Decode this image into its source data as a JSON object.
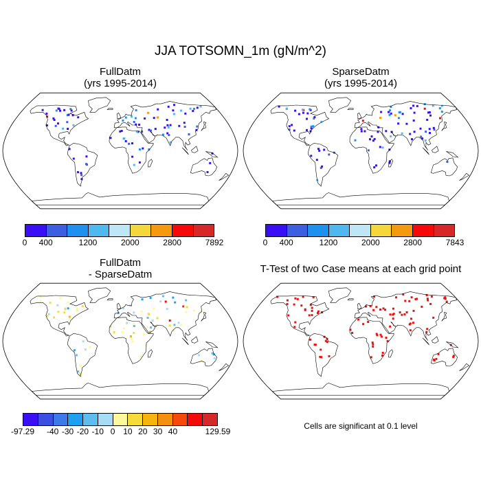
{
  "title": "JJA TOTSOMN_1m (gN/m^2)",
  "panels": [
    {
      "title_line1": "FullDatm",
      "title_line2": "(yrs 1995-2014)",
      "kind": "abs"
    },
    {
      "title_line1": "SparseDatm",
      "title_line2": "(yrs 1995-2014)",
      "kind": "abs"
    },
    {
      "title_line1": "FullDatm",
      "title_line2": "- SparseDatm",
      "kind": "diff"
    },
    {
      "title_line1": "T-Test of two Case means at each grid point",
      "title_line2": "",
      "kind": "ttest"
    }
  ],
  "colorbars": {
    "abs_colors": [
      "#3b0ff5",
      "#3b5fe0",
      "#1e90f0",
      "#4fb8ee",
      "#bfe6f7",
      "#f5d63b",
      "#f59a0e",
      "#f50a0a",
      "#d62828"
    ],
    "full_labels": [
      "0",
      "400",
      "1200",
      "2000",
      "2800",
      "7892"
    ],
    "sparse_labels": [
      "0",
      "400",
      "1200",
      "2000",
      "2800",
      "7843"
    ],
    "diff_colors": [
      "#3b0ff5",
      "#3b4fe0",
      "#3b7ae8",
      "#1ea0f0",
      "#5fbcee",
      "#a6dcf5",
      "#fdf99a",
      "#f5dc3b",
      "#f5b40e",
      "#f5900e",
      "#f54a0a",
      "#f50a0a",
      "#d62828"
    ],
    "diff_labels": [
      "-97.29",
      "-40",
      "-30",
      "-20",
      "-10",
      "0",
      "10",
      "20",
      "30",
      "40",
      "129.59"
    ]
  },
  "significance_note": "Cells are significant at 0.1 level",
  "colors": {
    "land_outline": "#000000",
    "ttest_marker": "#ee1111"
  }
}
